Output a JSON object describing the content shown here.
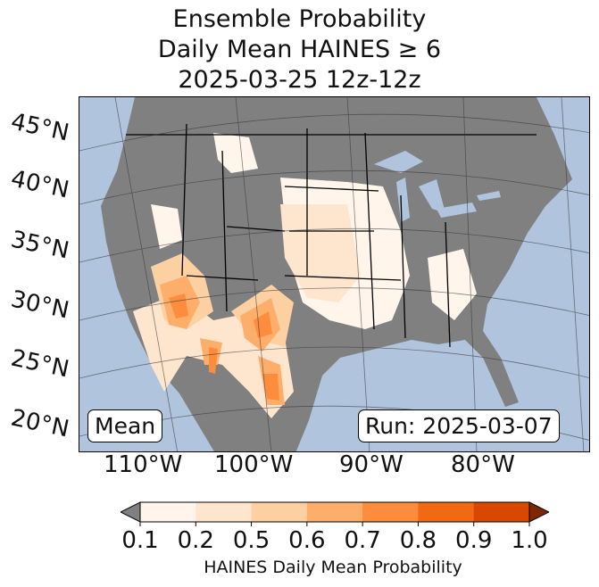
{
  "title": {
    "line1": "Ensemble Probability",
    "line2": "Daily Mean HAINES ≥ 6",
    "line3": "2025-03-25 12z-12z"
  },
  "lat_labels": [
    "45°N",
    "40°N",
    "35°N",
    "30°N",
    "25°N",
    "20°N"
  ],
  "lon_labels": [
    "110°W",
    "100°W",
    "90°W",
    "80°W"
  ],
  "stat_label": "Mean",
  "run_label": "Run: 2025-03-07",
  "colorbar": {
    "ticks": [
      "0.1",
      "0.2",
      "0.5",
      "0.6",
      "0.7",
      "0.8",
      "0.9",
      "1.0"
    ],
    "colors": [
      "#fff5eb",
      "#fee6ce",
      "#fdd0a2",
      "#fdae6b",
      "#fd8d3c",
      "#f16913",
      "#d94801"
    ],
    "under_color": "#808080",
    "over_color": "#7f2704",
    "label": "HAINES Daily Mean Probability"
  },
  "colors": {
    "ocean": "#b0c4de",
    "land": "#808080"
  }
}
